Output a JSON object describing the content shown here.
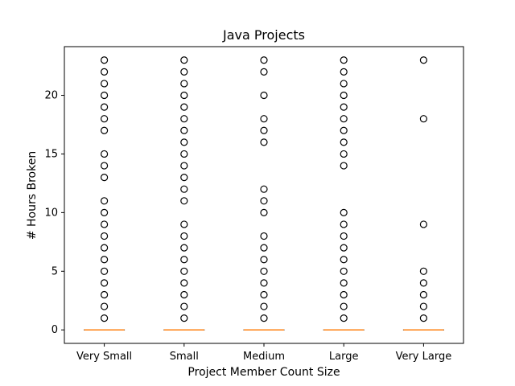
{
  "chart_data": {
    "type": "box",
    "title": "Java Projects",
    "xlabel": "Project Member Count Size",
    "ylabel": "# Hours Broken",
    "ylim": [
      -1.15,
      24.15
    ],
    "yticks": [
      0,
      5,
      10,
      15,
      20
    ],
    "grid": false,
    "categories": [
      "Very Small",
      "Small",
      "Medium",
      "Large",
      "Very Large"
    ],
    "series": [
      {
        "median": 0,
        "q1": 0,
        "q3": 0,
        "whisker_low": 0,
        "whisker_high": 0,
        "outliers": [
          1,
          2,
          3,
          4,
          5,
          6,
          7,
          8,
          9,
          10,
          11,
          13,
          14,
          15,
          17,
          18,
          19,
          20,
          21,
          22,
          23
        ]
      },
      {
        "median": 0,
        "q1": 0,
        "q3": 0,
        "whisker_low": 0,
        "whisker_high": 0,
        "outliers": [
          1,
          2,
          3,
          4,
          5,
          6,
          7,
          8,
          9,
          11,
          12,
          13,
          14,
          15,
          16,
          17,
          18,
          19,
          20,
          21,
          22,
          23
        ]
      },
      {
        "median": 0,
        "q1": 0,
        "q3": 0,
        "whisker_low": 0,
        "whisker_high": 0,
        "outliers": [
          1,
          2,
          3,
          4,
          5,
          6,
          7,
          8,
          10,
          11,
          12,
          16,
          17,
          18,
          20,
          22,
          23
        ]
      },
      {
        "median": 0,
        "q1": 0,
        "q3": 0,
        "whisker_low": 0,
        "whisker_high": 0,
        "outliers": [
          1,
          2,
          3,
          4,
          5,
          6,
          7,
          8,
          9,
          10,
          14,
          15,
          16,
          17,
          18,
          19,
          20,
          21,
          22,
          23
        ]
      },
      {
        "median": 0,
        "q1": 0,
        "q3": 0,
        "whisker_low": 0,
        "whisker_high": 0,
        "outliers": [
          1,
          2,
          3,
          4,
          5,
          9,
          18,
          23
        ]
      }
    ],
    "colors": {
      "median": "#ff7f0e",
      "box": "#000000",
      "outlier": "#000000"
    }
  }
}
